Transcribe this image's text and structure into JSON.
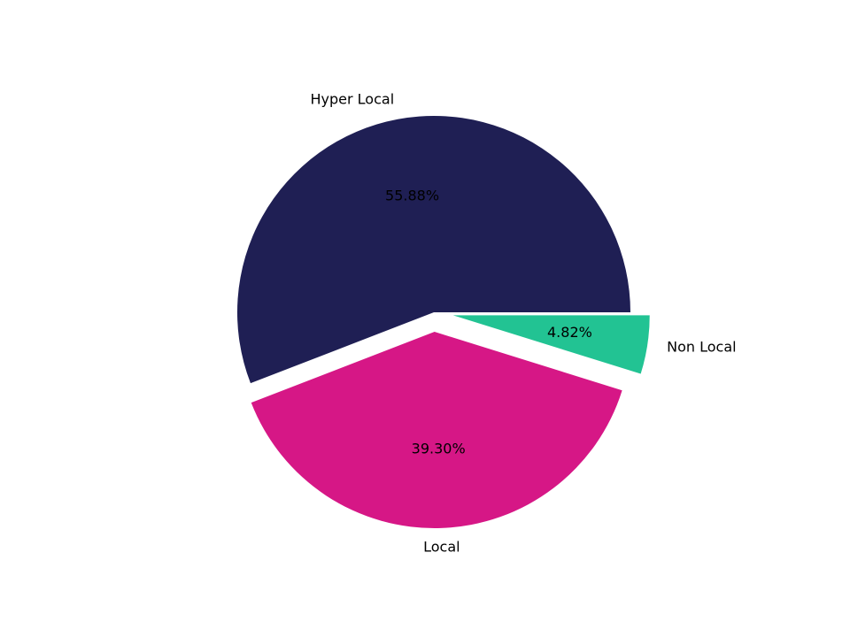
{
  "chart_data": {
    "type": "pie",
    "slices": [
      {
        "label": "Hyper Local",
        "value": 55.88,
        "value_label": "55.88%",
        "color": "#1f1f54",
        "exploded": false
      },
      {
        "label": "Local",
        "value": 39.3,
        "value_label": "39.30%",
        "color": "#d61786",
        "exploded": true
      },
      {
        "label": "Non Local",
        "value": 4.82,
        "value_label": "4.82%",
        "color": "#22c393",
        "exploded": true
      }
    ]
  }
}
